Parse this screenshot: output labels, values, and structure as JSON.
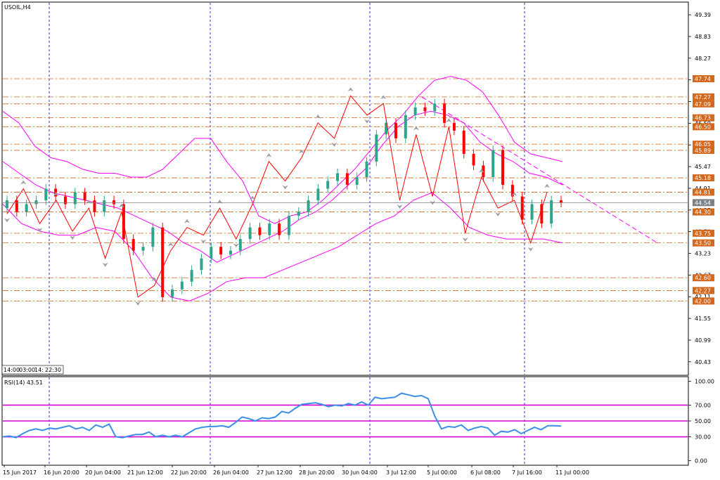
{
  "chart_data": [
    {
      "type": "candlestick",
      "title": "USOIL,H4",
      "ylim": [
        40.1,
        49.7
      ],
      "ytick_labels": [
        "49.39",
        "48.83",
        "48.27",
        "47.71",
        "47.15",
        "46.59",
        "46.03",
        "45.47",
        "44.91",
        "44.35",
        "43.79",
        "43.23",
        "42.67",
        "42.11",
        "41.55",
        "40.99",
        "40.43"
      ],
      "ytick_values": [
        49.39,
        48.83,
        48.27,
        47.71,
        47.15,
        46.59,
        46.03,
        45.47,
        44.91,
        44.35,
        43.79,
        43.23,
        42.67,
        42.11,
        41.55,
        40.99,
        40.43
      ],
      "levels": [
        {
          "label": "47.74",
          "value": 47.74
        },
        {
          "label": "47.27",
          "value": 47.27
        },
        {
          "label": "47.09",
          "value": 47.09
        },
        {
          "label": "46.73",
          "value": 46.73
        },
        {
          "label": "46.50",
          "value": 46.5
        },
        {
          "label": "46.05",
          "value": 46.05
        },
        {
          "label": "45.89",
          "value": 45.89
        },
        {
          "label": "45.18",
          "value": 45.18
        },
        {
          "label": "44.81",
          "value": 44.81
        },
        {
          "label": "44.30",
          "value": 44.3
        },
        {
          "label": "43.75",
          "value": 43.75
        },
        {
          "label": "43.50",
          "value": 43.5
        },
        {
          "label": "42.60",
          "value": 42.6
        },
        {
          "label": "42.27",
          "value": 42.27
        },
        {
          "label": "42.00",
          "value": 42.0
        }
      ],
      "current_price": {
        "label": "44.54",
        "value": 44.54
      },
      "session_labels": [
        "14:00",
        "03:00",
        "14:",
        "22:30"
      ],
      "close_series": [
        44.6,
        44.3,
        44.5,
        44.6,
        44.9,
        44.7,
        44.5,
        44.8,
        44.6,
        44.3,
        44.6,
        44.5,
        43.6,
        43.3,
        43.4,
        43.9,
        42.1,
        42.3,
        42.5,
        42.8,
        43.1,
        43.4,
        43.2,
        43.3,
        43.6,
        43.9,
        43.7,
        44.0,
        43.7,
        44.2,
        44.3,
        44.6,
        44.9,
        45.1,
        45.3,
        45.0,
        45.2,
        45.6,
        46.3,
        46.6,
        46.2,
        46.8,
        47.0,
        46.9,
        47.1,
        46.6,
        46.4,
        45.8,
        45.5,
        45.2,
        45.9,
        45.0,
        44.7,
        44.1,
        44.5,
        44.0,
        44.6,
        44.54
      ],
      "bollinger_upper": [
        46.9,
        46.6,
        46.0,
        45.7,
        45.6,
        45.4,
        45.3,
        45.3,
        45.2,
        45.2,
        45.4,
        45.8,
        46.2,
        46.2,
        45.6,
        45.1,
        44.2,
        44.0,
        44.2,
        44.3,
        44.6,
        45.0,
        45.4,
        45.9,
        46.4,
        46.8,
        47.3,
        47.7,
        47.8,
        47.7,
        47.4,
        46.8,
        46.1,
        45.8,
        45.7,
        45.6
      ],
      "bollinger_middle": [
        45.6,
        45.3,
        45.0,
        44.8,
        44.7,
        44.6,
        44.5,
        44.4,
        44.2,
        44.0,
        43.8,
        43.5,
        43.3,
        43.0,
        43.2,
        43.4,
        43.6,
        43.8,
        44.1,
        44.3,
        44.6,
        45.0,
        45.4,
        46.0,
        46.5,
        46.8,
        46.9,
        46.8,
        46.6,
        46.1,
        45.8,
        45.6,
        45.3,
        45.2,
        45.0
      ],
      "bollinger_lower": [
        44.5,
        44.0,
        43.8,
        43.7,
        43.7,
        43.9,
        43.8,
        43.3,
        42.6,
        42.1,
        42.0,
        42.2,
        42.5,
        42.6,
        42.6,
        42.8,
        43.0,
        43.2,
        43.4,
        43.7,
        44.0,
        44.2,
        44.6,
        44.8,
        44.4,
        43.9,
        43.7,
        43.6,
        43.6,
        43.6,
        43.5
      ],
      "zigzag": [
        44.25,
        44.9,
        44.0,
        44.6,
        43.8,
        44.4,
        43.1,
        44.3,
        42.1,
        42.4,
        43.3,
        43.9,
        43.7,
        44.4,
        43.6,
        44.5,
        45.6,
        45.1,
        45.7,
        46.6,
        46.2,
        47.3,
        46.8,
        47.1,
        44.6,
        46.3,
        44.7,
        46.5,
        43.75,
        45.2,
        44.4,
        44.6,
        43.5,
        44.81
      ],
      "trendline_start": 47.27,
      "trendline_end": 43.5
    },
    {
      "type": "line",
      "title": "RSI(14) 43.51",
      "ylim": [
        -5,
        105
      ],
      "ytick_labels": [
        "100.00",
        "70.00",
        "50.00",
        "30.00",
        "0.00"
      ],
      "ytick_values": [
        100,
        70,
        50,
        30,
        0
      ],
      "levels": [
        70,
        50,
        30
      ],
      "values": [
        30,
        31,
        29,
        34,
        38,
        40,
        38,
        41,
        40,
        42,
        44,
        40,
        42,
        38,
        45,
        42,
        46,
        30,
        29,
        31,
        33,
        33,
        36,
        30,
        32,
        30,
        32,
        30,
        35,
        40,
        42,
        43,
        43,
        44,
        42,
        48,
        55,
        53,
        50,
        54,
        53,
        55,
        62,
        60,
        66,
        71,
        72,
        73,
        71,
        68,
        70,
        69,
        72,
        70,
        74,
        70,
        80,
        78,
        79,
        80,
        85,
        83,
        81,
        82,
        78,
        56,
        40,
        43,
        42,
        45,
        38,
        41,
        43,
        41,
        32,
        37,
        36,
        39,
        34,
        38,
        42,
        39,
        44,
        44,
        43.51
      ],
      "x_tick_labels": [
        "15 Jun 2017",
        "16 Jun 20:00",
        "20 Jun 04:00",
        "21 Jun 12:00",
        "22 Jun 20:00",
        "26 Jun 04:00",
        "27 Jun 12:00",
        "28 Jun 20:00",
        "30 Jun 04:00",
        "3 Jul 12:00",
        "5 Jul 00:00",
        "6 Jul 08:00",
        "7 Jul 16:00",
        "11 Jul 00:00"
      ]
    }
  ],
  "colors": {
    "bull": "#2ca58d",
    "bear": "#ff0000",
    "bands": "#ff00ff",
    "levels": "#d2691e",
    "separators": "#0000cd",
    "rsi_line": "#3a8fe8",
    "rsi_levels": "#d400d4",
    "current_line": "#808080",
    "current_label_bg": "#7a8288"
  }
}
